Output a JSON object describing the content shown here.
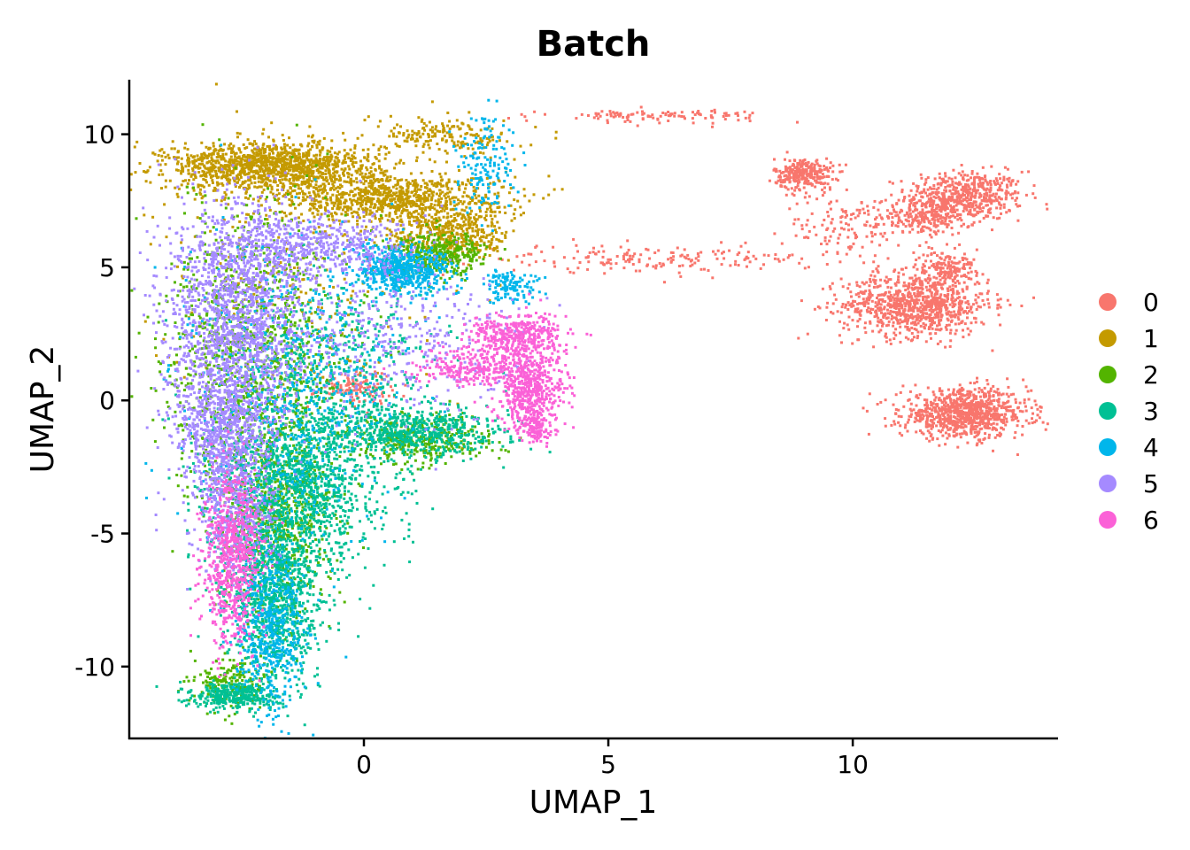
{
  "chart_data": {
    "type": "scatter",
    "title": "Batch",
    "xlabel": "UMAP_1",
    "ylabel": "UMAP_2",
    "xlim": [
      -4.8,
      14.2
    ],
    "ylim": [
      -12.7,
      12.05
    ],
    "xticks": [
      0,
      5,
      10
    ],
    "yticks": [
      -10,
      -5,
      0,
      5,
      10
    ],
    "xtick_labels": [
      "0",
      "5",
      "10"
    ],
    "ytick_labels": [
      "-10",
      "-5",
      "0",
      "5",
      "10"
    ],
    "grid": false,
    "legend_position": "right",
    "series": [
      {
        "name": "0",
        "color": "#F8766D",
        "clusters": [
          {
            "x": 12.3,
            "y": 7.7,
            "sx": 0.6,
            "sy": 0.45,
            "n": 500
          },
          {
            "x": 11.5,
            "y": 6.9,
            "sx": 0.5,
            "sy": 0.35,
            "n": 250
          },
          {
            "x": 11.3,
            "y": 3.6,
            "sx": 0.75,
            "sy": 0.6,
            "n": 900
          },
          {
            "x": 11.9,
            "y": 5.0,
            "sx": 0.3,
            "sy": 0.3,
            "n": 150
          },
          {
            "x": 9.0,
            "y": 8.5,
            "sx": 0.3,
            "sy": 0.3,
            "n": 280
          },
          {
            "x": 9.8,
            "y": 6.5,
            "sx": 0.6,
            "sy": 0.6,
            "n": 120
          },
          {
            "x": 12.3,
            "y": -0.5,
            "sx": 0.65,
            "sy": 0.45,
            "n": 900
          },
          {
            "x": 5.8,
            "y": 5.3,
            "sx": 1.7,
            "sy": 0.25,
            "n": 180
          },
          {
            "x": 6.0,
            "y": 10.7,
            "sx": 1.1,
            "sy": 0.12,
            "n": 110
          },
          {
            "x": -0.2,
            "y": 0.5,
            "sx": 0.4,
            "sy": 0.3,
            "n": 120
          }
        ]
      },
      {
        "name": "1",
        "color": "#C49A00",
        "clusters": [
          {
            "x": -1.9,
            "y": 8.8,
            "sx": 1.1,
            "sy": 0.45,
            "n": 1300
          },
          {
            "x": 0.5,
            "y": 7.6,
            "sx": 1.2,
            "sy": 0.45,
            "n": 900
          },
          {
            "x": 1.8,
            "y": 6.2,
            "sx": 0.6,
            "sy": 0.5,
            "n": 400
          },
          {
            "x": 1.7,
            "y": 9.9,
            "sx": 0.7,
            "sy": 0.35,
            "n": 180
          },
          {
            "x": -1.5,
            "y": 4.5,
            "sx": 1.3,
            "sy": 2.2,
            "n": 250
          }
        ]
      },
      {
        "name": "2",
        "color": "#53B400",
        "clusters": [
          {
            "x": -2.2,
            "y": 1.5,
            "sx": 0.9,
            "sy": 2.8,
            "n": 1200
          },
          {
            "x": -1.8,
            "y": -4.5,
            "sx": 0.55,
            "sy": 1.8,
            "n": 700
          },
          {
            "x": 1.5,
            "y": 5.5,
            "sx": 0.5,
            "sy": 0.4,
            "n": 350
          },
          {
            "x": 1.2,
            "y": -1.5,
            "sx": 0.7,
            "sy": 0.45,
            "n": 350
          },
          {
            "x": -2.7,
            "y": -10.6,
            "sx": 0.35,
            "sy": 0.5,
            "n": 200
          }
        ]
      },
      {
        "name": "3",
        "color": "#00C094",
        "clusters": [
          {
            "x": -1.3,
            "y": -3.0,
            "sx": 0.9,
            "sy": 1.6,
            "n": 1300
          },
          {
            "x": -1.8,
            "y": -7.2,
            "sx": 0.5,
            "sy": 1.6,
            "n": 1000
          },
          {
            "x": -2.6,
            "y": -11.1,
            "sx": 0.45,
            "sy": 0.25,
            "n": 350
          },
          {
            "x": 1.0,
            "y": -1.2,
            "sx": 0.9,
            "sy": 0.5,
            "n": 600
          },
          {
            "x": -0.5,
            "y": 1.5,
            "sx": 1.0,
            "sy": 1.5,
            "n": 400
          }
        ]
      },
      {
        "name": "4",
        "color": "#00B6EB",
        "clusters": [
          {
            "x": 0.8,
            "y": 4.9,
            "sx": 0.5,
            "sy": 0.45,
            "n": 600
          },
          {
            "x": -1.9,
            "y": -8.5,
            "sx": 0.35,
            "sy": 1.5,
            "n": 500
          },
          {
            "x": -1.5,
            "y": 0.5,
            "sx": 1.1,
            "sy": 2.8,
            "n": 600
          },
          {
            "x": 2.5,
            "y": 9.0,
            "sx": 0.3,
            "sy": 1.0,
            "n": 150
          },
          {
            "x": 3.0,
            "y": 4.3,
            "sx": 0.3,
            "sy": 0.3,
            "n": 120
          }
        ]
      },
      {
        "name": "5",
        "color": "#A58AFF",
        "clusters": [
          {
            "x": -2.6,
            "y": 3.5,
            "sx": 0.75,
            "sy": 2.0,
            "n": 1400
          },
          {
            "x": -2.9,
            "y": -1.0,
            "sx": 0.5,
            "sy": 1.5,
            "n": 900
          },
          {
            "x": -0.9,
            "y": 5.8,
            "sx": 1.0,
            "sy": 0.6,
            "n": 500
          },
          {
            "x": 0.5,
            "y": 2.0,
            "sx": 1.3,
            "sy": 1.3,
            "n": 400
          },
          {
            "x": -2.6,
            "y": -4.5,
            "sx": 0.4,
            "sy": 1.2,
            "n": 400
          }
        ]
      },
      {
        "name": "6",
        "color": "#FB61D7",
        "clusters": [
          {
            "x": 3.4,
            "y": 0.5,
            "sx": 0.35,
            "sy": 0.8,
            "n": 550
          },
          {
            "x": 3.1,
            "y": 2.5,
            "sx": 0.5,
            "sy": 0.4,
            "n": 350
          },
          {
            "x": -2.7,
            "y": -6.0,
            "sx": 0.28,
            "sy": 1.6,
            "n": 700
          },
          {
            "x": 2.2,
            "y": 1.3,
            "sx": 0.6,
            "sy": 0.35,
            "n": 250
          },
          {
            "x": 3.5,
            "y": -1.0,
            "sx": 0.2,
            "sy": 0.35,
            "n": 120
          }
        ]
      }
    ]
  }
}
